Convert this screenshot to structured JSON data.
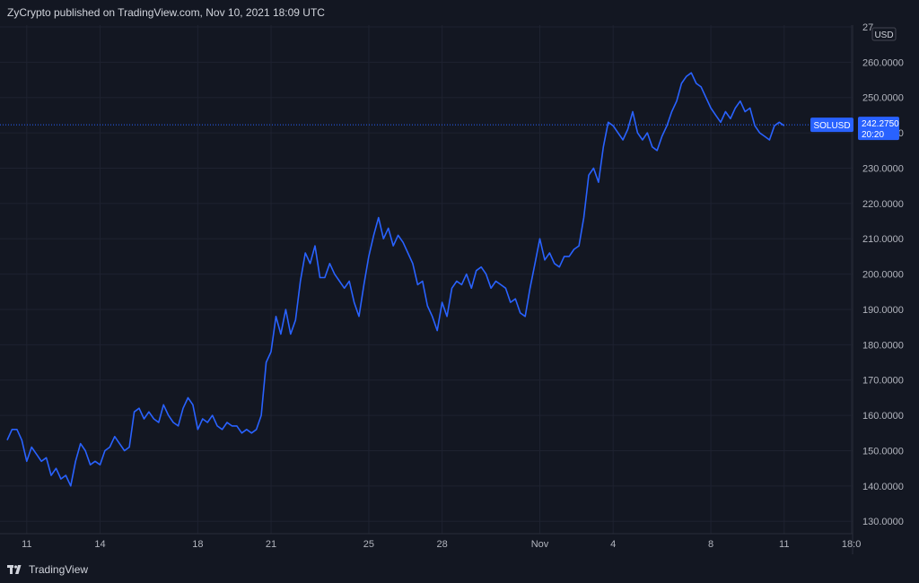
{
  "header": {
    "publisher_line": "ZyCrypto published on TradingView.com, Nov 10, 2021 18:09 UTC"
  },
  "footer": {
    "brand": "TradingView"
  },
  "colors": {
    "background": "#131722",
    "grid": "#1e2230",
    "line": "#2962ff",
    "axis_text": "#b2b5be",
    "price_tag": "#2962ff"
  },
  "currency_badge": "USD",
  "last_price": {
    "symbol": "SOLUSD",
    "value": "242.2750",
    "countdown": "20:20"
  },
  "chart_data": {
    "type": "line",
    "title": "",
    "xlabel": "",
    "ylabel": "",
    "x_ticks": [
      {
        "day": 11,
        "label": "11"
      },
      {
        "day": 14,
        "label": "14"
      },
      {
        "day": 18,
        "label": "18"
      },
      {
        "day": 21,
        "label": "21"
      },
      {
        "day": 25,
        "label": "25"
      },
      {
        "day": 28,
        "label": "28"
      },
      {
        "day": 32,
        "label": "Nov"
      },
      {
        "day": 35,
        "label": "4"
      },
      {
        "day": 39,
        "label": "8"
      },
      {
        "day": 42,
        "label": "11"
      },
      {
        "day": 44.75,
        "label": "18:0"
      }
    ],
    "y_ticks": [
      "27",
      "260.0000",
      "250.0000",
      "240.0000",
      "230.0000",
      "220.0000",
      "210.0000",
      "200.0000",
      "190.0000",
      "180.0000",
      "170.0000",
      "160.0000",
      "150.0000",
      "140.0000",
      "130.0000"
    ],
    "xlim": [
      10.2,
      44.8
    ],
    "ylim": [
      126.5,
      270.5
    ],
    "grid": true,
    "legend": "none",
    "series": [
      {
        "name": "SOLUSD",
        "points": [
          [
            10.2,
            153
          ],
          [
            10.4,
            156
          ],
          [
            10.6,
            156
          ],
          [
            10.8,
            153
          ],
          [
            11.0,
            147
          ],
          [
            11.2,
            151
          ],
          [
            11.4,
            149
          ],
          [
            11.6,
            147
          ],
          [
            11.8,
            148
          ],
          [
            12.0,
            143
          ],
          [
            12.2,
            145
          ],
          [
            12.4,
            142
          ],
          [
            12.6,
            143
          ],
          [
            12.8,
            140
          ],
          [
            13.0,
            147
          ],
          [
            13.2,
            152
          ],
          [
            13.4,
            150
          ],
          [
            13.6,
            146
          ],
          [
            13.8,
            147
          ],
          [
            14.0,
            146
          ],
          [
            14.2,
            150
          ],
          [
            14.4,
            151
          ],
          [
            14.6,
            154
          ],
          [
            14.8,
            152
          ],
          [
            15.0,
            150
          ],
          [
            15.2,
            151
          ],
          [
            15.4,
            161
          ],
          [
            15.6,
            162
          ],
          [
            15.8,
            159
          ],
          [
            16.0,
            161
          ],
          [
            16.2,
            159
          ],
          [
            16.4,
            158
          ],
          [
            16.6,
            163
          ],
          [
            16.8,
            160
          ],
          [
            17.0,
            158
          ],
          [
            17.2,
            157
          ],
          [
            17.4,
            162
          ],
          [
            17.6,
            165
          ],
          [
            17.8,
            163
          ],
          [
            18.0,
            156
          ],
          [
            18.2,
            159
          ],
          [
            18.4,
            158
          ],
          [
            18.6,
            160
          ],
          [
            18.8,
            157
          ],
          [
            19.0,
            156
          ],
          [
            19.2,
            158
          ],
          [
            19.4,
            157
          ],
          [
            19.6,
            157
          ],
          [
            19.8,
            155
          ],
          [
            20.0,
            156
          ],
          [
            20.2,
            155
          ],
          [
            20.4,
            156
          ],
          [
            20.6,
            160
          ],
          [
            20.8,
            175
          ],
          [
            21.0,
            178
          ],
          [
            21.2,
            188
          ],
          [
            21.4,
            183
          ],
          [
            21.6,
            190
          ],
          [
            21.8,
            183
          ],
          [
            22.0,
            187
          ],
          [
            22.2,
            198
          ],
          [
            22.4,
            206
          ],
          [
            22.6,
            203
          ],
          [
            22.8,
            208
          ],
          [
            23.0,
            199
          ],
          [
            23.2,
            199
          ],
          [
            23.4,
            203
          ],
          [
            23.6,
            200
          ],
          [
            23.8,
            198
          ],
          [
            24.0,
            196
          ],
          [
            24.2,
            198
          ],
          [
            24.4,
            192
          ],
          [
            24.6,
            188
          ],
          [
            24.8,
            197
          ],
          [
            25.0,
            205
          ],
          [
            25.2,
            211
          ],
          [
            25.4,
            216
          ],
          [
            25.6,
            210
          ],
          [
            25.8,
            213
          ],
          [
            26.0,
            208
          ],
          [
            26.2,
            211
          ],
          [
            26.4,
            209
          ],
          [
            26.6,
            206
          ],
          [
            26.8,
            203
          ],
          [
            27.0,
            197
          ],
          [
            27.2,
            198
          ],
          [
            27.4,
            191
          ],
          [
            27.6,
            188
          ],
          [
            27.8,
            184
          ],
          [
            28.0,
            192
          ],
          [
            28.2,
            188
          ],
          [
            28.4,
            196
          ],
          [
            28.6,
            198
          ],
          [
            28.8,
            197
          ],
          [
            29.0,
            200
          ],
          [
            29.2,
            196
          ],
          [
            29.4,
            201
          ],
          [
            29.6,
            202
          ],
          [
            29.8,
            200
          ],
          [
            30.0,
            196
          ],
          [
            30.2,
            198
          ],
          [
            30.4,
            197
          ],
          [
            30.6,
            196
          ],
          [
            30.8,
            192
          ],
          [
            31.0,
            193
          ],
          [
            31.2,
            189
          ],
          [
            31.4,
            188
          ],
          [
            31.6,
            196
          ],
          [
            31.8,
            203
          ],
          [
            32.0,
            210
          ],
          [
            32.2,
            204
          ],
          [
            32.4,
            206
          ],
          [
            32.6,
            203
          ],
          [
            32.8,
            202
          ],
          [
            33.0,
            205
          ],
          [
            33.2,
            205
          ],
          [
            33.4,
            207
          ],
          [
            33.6,
            208
          ],
          [
            33.8,
            216
          ],
          [
            34.0,
            228
          ],
          [
            34.2,
            230
          ],
          [
            34.4,
            226
          ],
          [
            34.6,
            236
          ],
          [
            34.8,
            243
          ],
          [
            35.0,
            242
          ],
          [
            35.2,
            240
          ],
          [
            35.4,
            238
          ],
          [
            35.6,
            241
          ],
          [
            35.8,
            246
          ],
          [
            36.0,
            240
          ],
          [
            36.2,
            238
          ],
          [
            36.4,
            240
          ],
          [
            36.6,
            236
          ],
          [
            36.8,
            235
          ],
          [
            37.0,
            239
          ],
          [
            37.2,
            242
          ],
          [
            37.4,
            246
          ],
          [
            37.6,
            249
          ],
          [
            37.8,
            254
          ],
          [
            38.0,
            256
          ],
          [
            38.2,
            257
          ],
          [
            38.4,
            254
          ],
          [
            38.6,
            253
          ],
          [
            38.8,
            250
          ],
          [
            39.0,
            247
          ],
          [
            39.2,
            245
          ],
          [
            39.4,
            243
          ],
          [
            39.6,
            246
          ],
          [
            39.8,
            244
          ],
          [
            40.0,
            247
          ],
          [
            40.2,
            249
          ],
          [
            40.4,
            246
          ],
          [
            40.6,
            247
          ],
          [
            40.8,
            242
          ],
          [
            41.0,
            240
          ],
          [
            41.2,
            239
          ],
          [
            41.4,
            238
          ],
          [
            41.6,
            242
          ],
          [
            41.8,
            243
          ],
          [
            42.0,
            242
          ]
        ]
      }
    ]
  }
}
